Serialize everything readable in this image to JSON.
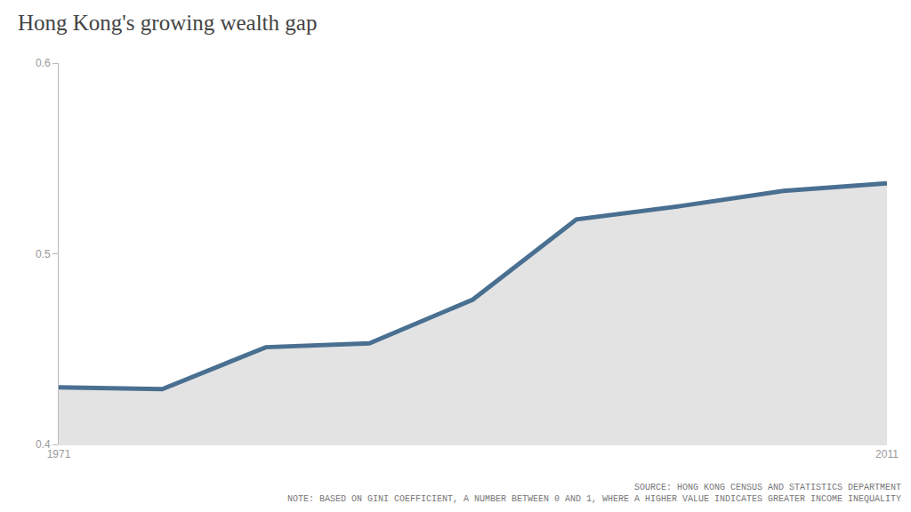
{
  "chart_data": {
    "type": "line",
    "title": "Hong Kong's growing wealth gap",
    "categories": [
      "1971",
      null,
      null,
      null,
      null,
      null,
      null,
      null,
      "2011"
    ],
    "values": [
      0.43,
      0.429,
      0.451,
      0.453,
      0.476,
      0.518,
      0.525,
      0.533,
      0.537
    ],
    "color": "#4a7091",
    "ylim": [
      0.4,
      0.6
    ],
    "yticks": [
      0.4,
      0.5,
      0.6
    ],
    "grid": false,
    "source": "SOURCE: HONG KONG CENSUS AND STATISTICS DEPARTMENT",
    "note": "NOTE: BASED ON GINI COEFFICIENT, A NUMBER BETWEEN 0 AND 1, WHERE A HIGHER VALUE INDICATES GREATER INCOME INEQUALITY"
  }
}
